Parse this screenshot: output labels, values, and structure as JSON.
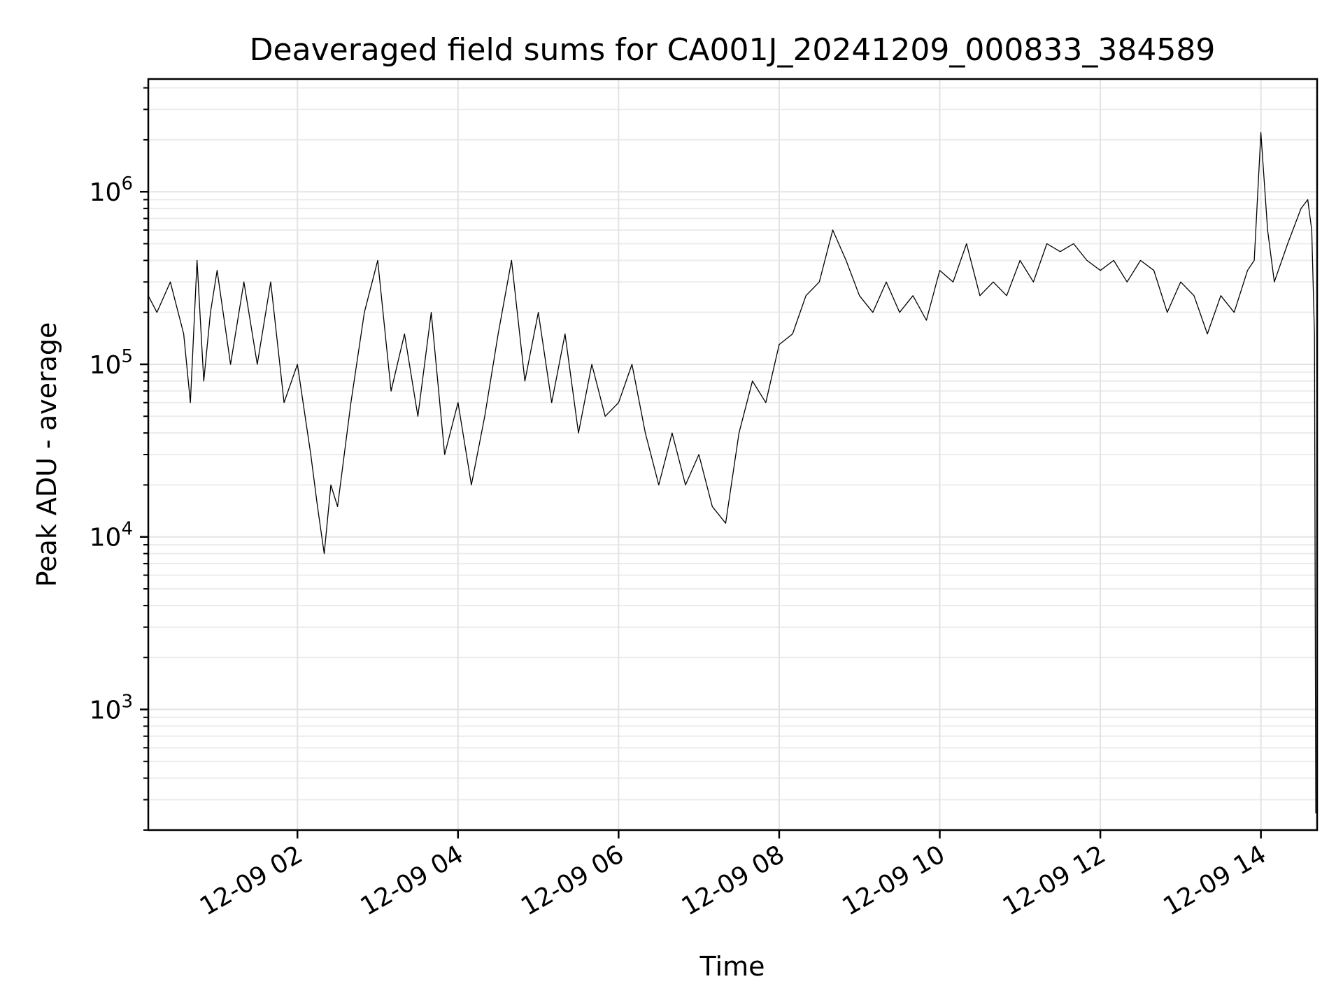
{
  "chart_data": {
    "type": "line",
    "title": "Deaveraged field sums for CA001J_20241209_000833_384589",
    "xlabel": "Time",
    "ylabel": "Peak ADU - average",
    "yscale": "log",
    "ylim": [
      200,
      4500000
    ],
    "xlim": [
      "2024-12-09T00:08:33",
      "2024-12-09T14:42:00"
    ],
    "grid": true,
    "legend": "none",
    "x_ticks": [
      {
        "value": "2024-12-09T02:00:00",
        "label": "12-09 02"
      },
      {
        "value": "2024-12-09T04:00:00",
        "label": "12-09 04"
      },
      {
        "value": "2024-12-09T06:00:00",
        "label": "12-09 06"
      },
      {
        "value": "2024-12-09T08:00:00",
        "label": "12-09 08"
      },
      {
        "value": "2024-12-09T10:00:00",
        "label": "12-09 10"
      },
      {
        "value": "2024-12-09T12:00:00",
        "label": "12-09 12"
      },
      {
        "value": "2024-12-09T14:00:00",
        "label": "12-09 14"
      }
    ],
    "y_ticks": [
      {
        "value": 1000,
        "base": "10",
        "exp": "3"
      },
      {
        "value": 10000,
        "base": "10",
        "exp": "4"
      },
      {
        "value": 100000,
        "base": "10",
        "exp": "5"
      },
      {
        "value": 1000000,
        "base": "10",
        "exp": "6"
      }
    ],
    "series_color": "#000000",
    "x": [
      "2024-12-09T00:08:33",
      "2024-12-09T00:15",
      "2024-12-09T00:25",
      "2024-12-09T00:35",
      "2024-12-09T00:40",
      "2024-12-09T00:45",
      "2024-12-09T00:50",
      "2024-12-09T00:55",
      "2024-12-09T01:00",
      "2024-12-09T01:10",
      "2024-12-09T01:20",
      "2024-12-09T01:30",
      "2024-12-09T01:40",
      "2024-12-09T01:50",
      "2024-12-09T02:00",
      "2024-12-09T02:10",
      "2024-12-09T02:15",
      "2024-12-09T02:20",
      "2024-12-09T02:25",
      "2024-12-09T02:30",
      "2024-12-09T02:40",
      "2024-12-09T02:50",
      "2024-12-09T03:00",
      "2024-12-09T03:10",
      "2024-12-09T03:20",
      "2024-12-09T03:30",
      "2024-12-09T03:40",
      "2024-12-09T03:50",
      "2024-12-09T04:00",
      "2024-12-09T04:10",
      "2024-12-09T04:20",
      "2024-12-09T04:30",
      "2024-12-09T04:40",
      "2024-12-09T04:50",
      "2024-12-09T05:00",
      "2024-12-09T05:10",
      "2024-12-09T05:20",
      "2024-12-09T05:30",
      "2024-12-09T05:40",
      "2024-12-09T05:50",
      "2024-12-09T06:00",
      "2024-12-09T06:10",
      "2024-12-09T06:20",
      "2024-12-09T06:30",
      "2024-12-09T06:40",
      "2024-12-09T06:50",
      "2024-12-09T07:00",
      "2024-12-09T07:10",
      "2024-12-09T07:20",
      "2024-12-09T07:30",
      "2024-12-09T07:40",
      "2024-12-09T07:50",
      "2024-12-09T08:00",
      "2024-12-09T08:10",
      "2024-12-09T08:20",
      "2024-12-09T08:30",
      "2024-12-09T08:40",
      "2024-12-09T08:50",
      "2024-12-09T09:00",
      "2024-12-09T09:10",
      "2024-12-09T09:20",
      "2024-12-09T09:30",
      "2024-12-09T09:40",
      "2024-12-09T09:50",
      "2024-12-09T10:00",
      "2024-12-09T10:10",
      "2024-12-09T10:20",
      "2024-12-09T10:30",
      "2024-12-09T10:40",
      "2024-12-09T10:50",
      "2024-12-09T11:00",
      "2024-12-09T11:10",
      "2024-12-09T11:20",
      "2024-12-09T11:30",
      "2024-12-09T11:40",
      "2024-12-09T11:50",
      "2024-12-09T12:00",
      "2024-12-09T12:10",
      "2024-12-09T12:20",
      "2024-12-09T12:30",
      "2024-12-09T12:40",
      "2024-12-09T12:50",
      "2024-12-09T13:00",
      "2024-12-09T13:10",
      "2024-12-09T13:20",
      "2024-12-09T13:30",
      "2024-12-09T13:40",
      "2024-12-09T13:50",
      "2024-12-09T13:55",
      "2024-12-09T14:00",
      "2024-12-09T14:05",
      "2024-12-09T14:10",
      "2024-12-09T14:20",
      "2024-12-09T14:30",
      "2024-12-09T14:35",
      "2024-12-09T14:38",
      "2024-12-09T14:40",
      "2024-12-09T14:41"
    ],
    "y": [
      250000,
      200000,
      300000,
      150000,
      60000,
      400000,
      80000,
      200000,
      350000,
      100000,
      300000,
      100000,
      300000,
      60000,
      100000,
      30000,
      15000,
      8000,
      20000,
      15000,
      60000,
      200000,
      400000,
      70000,
      150000,
      50000,
      200000,
      30000,
      60000,
      20000,
      50000,
      150000,
      400000,
      80000,
      200000,
      60000,
      150000,
      40000,
      100000,
      50000,
      60000,
      100000,
      40000,
      20000,
      40000,
      20000,
      30000,
      15000,
      12000,
      40000,
      80000,
      60000,
      130000,
      150000,
      250000,
      300000,
      600000,
      400000,
      250000,
      200000,
      300000,
      200000,
      250000,
      180000,
      350000,
      300000,
      500000,
      250000,
      300000,
      250000,
      400000,
      300000,
      500000,
      450000,
      500000,
      400000,
      350000,
      400000,
      300000,
      400000,
      350000,
      200000,
      300000,
      250000,
      150000,
      250000,
      200000,
      350000,
      400000,
      2200000,
      600000,
      300000,
      500000,
      800000,
      900000,
      600000,
      150000,
      250
    ]
  }
}
